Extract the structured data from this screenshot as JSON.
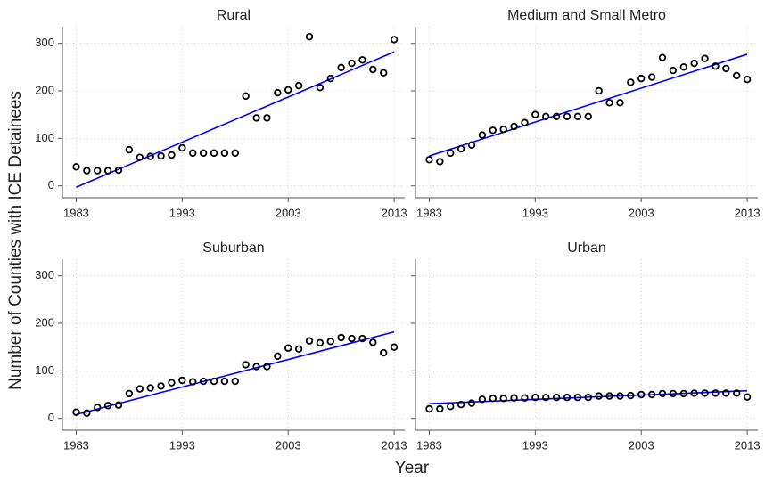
{
  "y_label": "Number of Counties with ICE Detainees",
  "x_label": "Year",
  "chart_data": [
    {
      "type": "scatter",
      "title": "Rural",
      "color": "#000000",
      "fit_color": "#0000ff",
      "grid": true,
      "ytick_labels": true,
      "x": [
        1983,
        1984,
        1985,
        1986,
        1987,
        1988,
        1989,
        1990,
        1991,
        1992,
        1993,
        1994,
        1995,
        1996,
        1997,
        1998,
        1999,
        2000,
        2001,
        2002,
        2003,
        2004,
        2005,
        2006,
        2007,
        2008,
        2009,
        2010,
        2011,
        2012,
        2013
      ],
      "values": [
        40,
        32,
        32,
        32,
        33,
        76,
        60,
        62,
        63,
        65,
        80,
        69,
        69,
        69,
        69,
        69,
        189,
        143,
        143,
        196,
        202,
        211,
        314,
        207,
        226,
        249,
        258,
        265,
        245,
        238,
        308
      ],
      "fit_x": [
        1983,
        2013
      ],
      "fit_values": [
        -3,
        282
      ],
      "xlim": [
        1981.7,
        2014
      ],
      "ylim": [
        -25,
        335
      ],
      "xticks": [
        1983,
        1993,
        2003,
        2013
      ],
      "yticks": [
        0,
        100,
        200,
        300
      ]
    },
    {
      "type": "scatter",
      "title": "Medium and Small Metro",
      "color": "#000000",
      "fit_color": "#0000ff",
      "grid": true,
      "ytick_labels": false,
      "x": [
        1983,
        1984,
        1985,
        1986,
        1987,
        1988,
        1989,
        1990,
        1991,
        1992,
        1993,
        1994,
        1995,
        1996,
        1997,
        1998,
        1999,
        2000,
        2001,
        2002,
        2003,
        2004,
        2005,
        2006,
        2007,
        2008,
        2009,
        2010,
        2011,
        2012,
        2013
      ],
      "values": [
        55,
        51,
        69,
        78,
        86,
        107,
        117,
        119,
        125,
        133,
        150,
        146,
        146,
        146,
        146,
        146,
        200,
        175,
        175,
        218,
        226,
        229,
        270,
        243,
        250,
        258,
        268,
        252,
        247,
        232,
        224
      ],
      "fit_x": [
        1983,
        2013
      ],
      "fit_values": [
        63,
        277
      ],
      "xlim": [
        1981.7,
        2014
      ],
      "ylim": [
        -25,
        335
      ],
      "xticks": [
        1983,
        1993,
        2003,
        2013
      ],
      "yticks": [
        0,
        100,
        200,
        300
      ]
    },
    {
      "type": "scatter",
      "title": "Suburban",
      "color": "#000000",
      "fit_color": "#0000ff",
      "grid": true,
      "ytick_labels": true,
      "x": [
        1983,
        1984,
        1985,
        1986,
        1987,
        1988,
        1989,
        1990,
        1991,
        1992,
        1993,
        1994,
        1995,
        1996,
        1997,
        1998,
        1999,
        2000,
        2001,
        2002,
        2003,
        2004,
        2005,
        2006,
        2007,
        2008,
        2009,
        2010,
        2011,
        2012,
        2013
      ],
      "values": [
        13,
        11,
        23,
        27,
        28,
        52,
        62,
        64,
        68,
        75,
        80,
        77,
        78,
        78,
        78,
        78,
        113,
        109,
        109,
        131,
        148,
        146,
        163,
        159,
        162,
        170,
        168,
        168,
        160,
        138,
        150
      ],
      "fit_x": [
        1983,
        2013
      ],
      "fit_values": [
        8,
        182
      ],
      "xlim": [
        1981.7,
        2014
      ],
      "ylim": [
        -25,
        335
      ],
      "xticks": [
        1983,
        1993,
        2003,
        2013
      ],
      "yticks": [
        0,
        100,
        200,
        300
      ]
    },
    {
      "type": "scatter",
      "title": "Urban",
      "color": "#000000",
      "fit_color": "#0000ff",
      "grid": true,
      "ytick_labels": false,
      "x": [
        1983,
        1984,
        1985,
        1986,
        1987,
        1988,
        1989,
        1990,
        1991,
        1992,
        1993,
        1994,
        1995,
        1996,
        1997,
        1998,
        1999,
        2000,
        2001,
        2002,
        2003,
        2004,
        2005,
        2006,
        2007,
        2008,
        2009,
        2010,
        2011,
        2012,
        2013
      ],
      "values": [
        20,
        20,
        25,
        29,
        32,
        40,
        42,
        42,
        43,
        43,
        44,
        44,
        44,
        44,
        44,
        44,
        47,
        47,
        47,
        48,
        50,
        50,
        52,
        52,
        52,
        53,
        53,
        53,
        53,
        53,
        45
      ],
      "fit_x": [
        1983,
        2013
      ],
      "fit_values": [
        31,
        58
      ],
      "xlim": [
        1981.7,
        2014
      ],
      "ylim": [
        -25,
        335
      ],
      "xticks": [
        1983,
        1993,
        2003,
        2013
      ],
      "yticks": [
        0,
        100,
        200,
        300
      ]
    }
  ]
}
